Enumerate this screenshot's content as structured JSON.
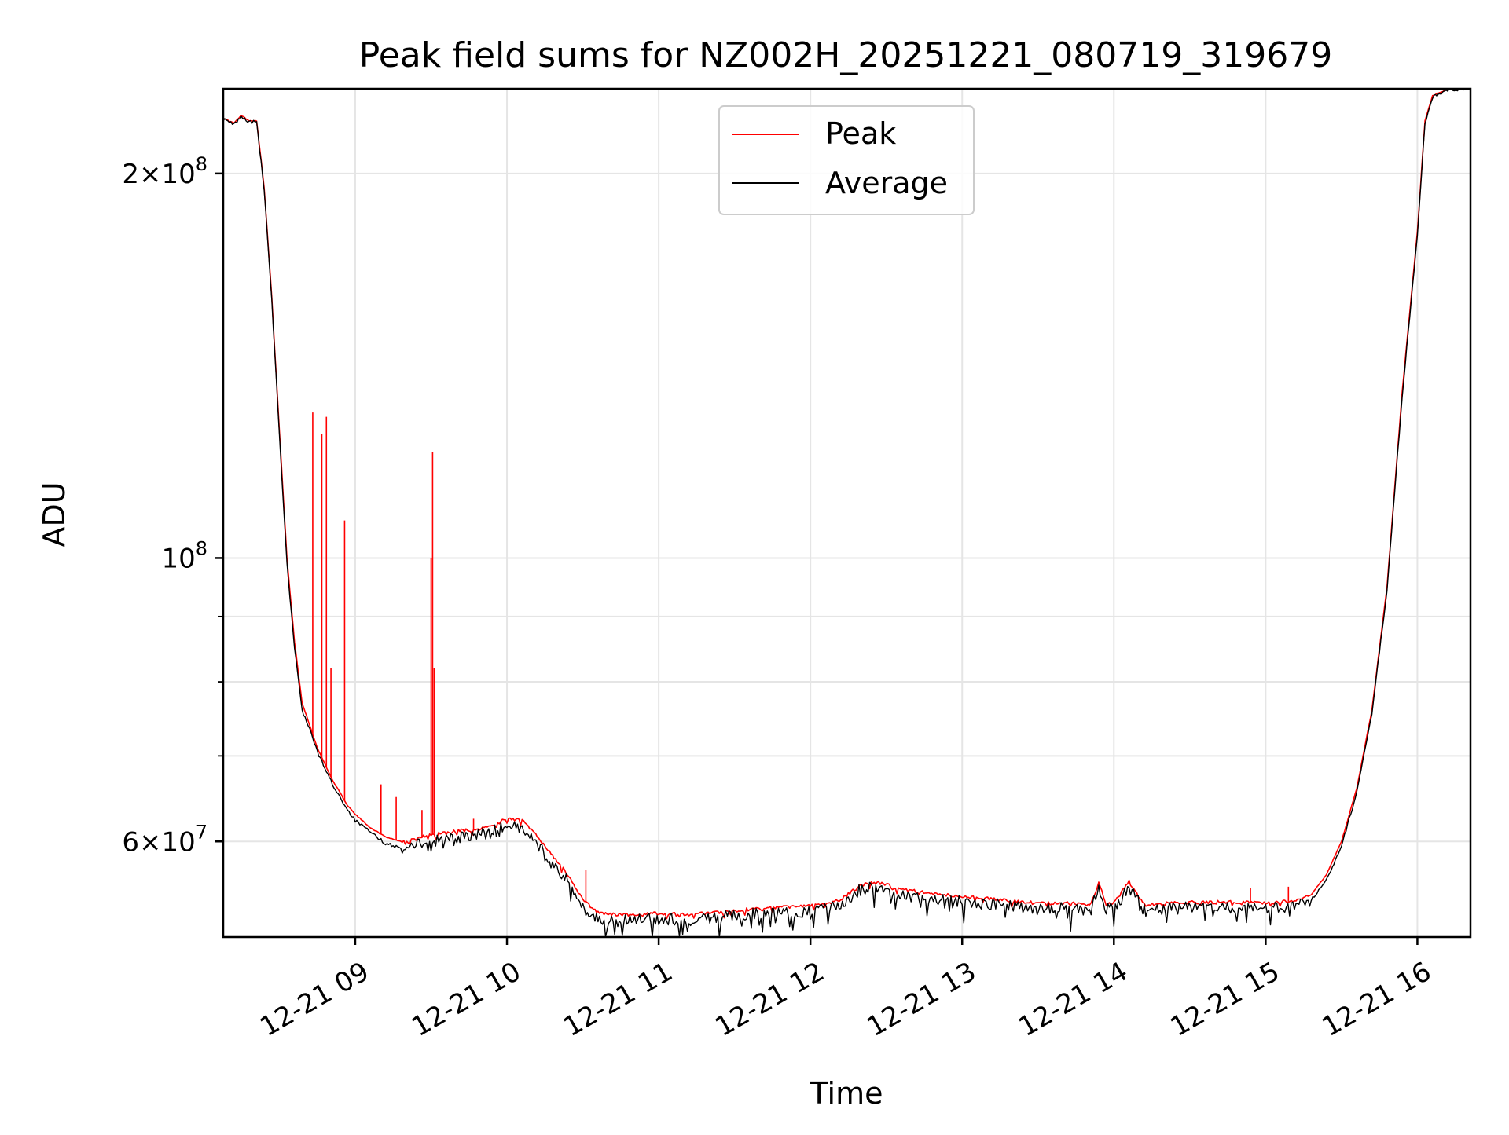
{
  "chart_data": {
    "type": "line",
    "title": "Peak field sums for NZ002H_20251221_080719_319679",
    "xlabel": "Time",
    "ylabel": "ADU",
    "x_unit": "hours since 12-21 00:00",
    "xlim": [
      8.13,
      16.35
    ],
    "ylim": [
      50500000,
      233000000
    ],
    "yscale": "log",
    "grid": true,
    "legend_position": "upper center",
    "xticks": [
      {
        "value": 9,
        "label": "12-21 09"
      },
      {
        "value": 10,
        "label": "12-21 10"
      },
      {
        "value": 11,
        "label": "12-21 11"
      },
      {
        "value": 12,
        "label": "12-21 12"
      },
      {
        "value": 13,
        "label": "12-21 13"
      },
      {
        "value": 14,
        "label": "12-21 14"
      },
      {
        "value": 15,
        "label": "12-21 15"
      },
      {
        "value": 16,
        "label": "12-21 16"
      }
    ],
    "yticks_major": [
      {
        "value": 200000000,
        "mantissa": "2",
        "times": "×",
        "base": "10",
        "exp": "8"
      },
      {
        "value": 100000000,
        "mantissa": "",
        "times": "",
        "base": "10",
        "exp": "8"
      },
      {
        "value": 60000000,
        "mantissa": "6",
        "times": "×",
        "base": "10",
        "exp": "7"
      }
    ],
    "yticks_minor": [
      70000000,
      80000000,
      90000000
    ],
    "series": [
      {
        "name": "Peak",
        "color": "#ff0000",
        "x": [
          8.13,
          8.2,
          8.25,
          8.3,
          8.35,
          8.4,
          8.45,
          8.5,
          8.55,
          8.6,
          8.65,
          8.7,
          8.75,
          8.8,
          8.85,
          8.9,
          8.95,
          9.0,
          9.1,
          9.2,
          9.3,
          9.35,
          9.4,
          9.5,
          9.6,
          9.7,
          9.8,
          9.9,
          10.0,
          10.1,
          10.2,
          10.3,
          10.4,
          10.5,
          10.6,
          10.7,
          10.8,
          11.0,
          11.2,
          11.4,
          11.6,
          11.8,
          12.0,
          12.2,
          12.3,
          12.4,
          12.5,
          12.6,
          12.8,
          13.0,
          13.2,
          13.4,
          13.6,
          13.85,
          13.9,
          13.95,
          14.0,
          14.1,
          14.2,
          14.4,
          14.6,
          14.8,
          15.0,
          15.2,
          15.3,
          15.4,
          15.5,
          15.6,
          15.7,
          15.8,
          15.9,
          16.0,
          16.05,
          16.1,
          16.2,
          16.35
        ],
        "y": [
          221000000,
          219000000,
          222000000,
          220000000,
          220000000,
          195000000,
          160000000,
          126000000,
          100000000,
          86000000,
          77000000,
          74000000,
          71000000,
          69000000,
          67000000,
          65500000,
          64000000,
          63000000,
          61500000,
          60500000,
          60000000,
          60200000,
          60300000,
          60800000,
          61000000,
          61200000,
          61300000,
          61700000,
          62500000,
          62300000,
          60500000,
          58500000,
          56500000,
          54000000,
          52800000,
          52600000,
          52600000,
          52700000,
          52600000,
          52800000,
          53100000,
          53300000,
          53400000,
          54000000,
          55200000,
          55800000,
          55500000,
          55000000,
          54700000,
          54300000,
          54100000,
          53800000,
          53700000,
          53600000,
          55800000,
          53600000,
          53700000,
          55800000,
          53500000,
          53700000,
          53800000,
          53800000,
          53700000,
          53900000,
          54500000,
          56500000,
          60000000,
          66000000,
          76000000,
          95000000,
          135000000,
          180000000,
          220000000,
          230000000,
          233000000,
          233000000
        ],
        "spikes": [
          {
            "x": 8.72,
            "y": 130000000
          },
          {
            "x": 8.78,
            "y": 125000000
          },
          {
            "x": 8.81,
            "y": 129000000
          },
          {
            "x": 8.84,
            "y": 82000000
          },
          {
            "x": 8.93,
            "y": 107000000
          },
          {
            "x": 9.5,
            "y": 100000000
          },
          {
            "x": 9.51,
            "y": 121000000
          },
          {
            "x": 9.52,
            "y": 82000000
          },
          {
            "x": 9.17,
            "y": 66500000
          },
          {
            "x": 9.27,
            "y": 65000000
          },
          {
            "x": 9.44,
            "y": 63500000
          },
          {
            "x": 9.78,
            "y": 62500000
          },
          {
            "x": 10.52,
            "y": 57000000
          },
          {
            "x": 14.9,
            "y": 55200000
          },
          {
            "x": 15.15,
            "y": 55300000
          }
        ]
      },
      {
        "name": "Average",
        "color": "#000000",
        "x": [
          8.13,
          8.2,
          8.25,
          8.3,
          8.35,
          8.4,
          8.45,
          8.5,
          8.55,
          8.6,
          8.65,
          8.7,
          8.75,
          8.8,
          8.85,
          8.9,
          8.95,
          9.0,
          9.1,
          9.2,
          9.3,
          9.35,
          9.4,
          9.5,
          9.6,
          9.7,
          9.8,
          9.9,
          10.0,
          10.1,
          10.2,
          10.3,
          10.4,
          10.5,
          10.6,
          10.7,
          10.8,
          11.0,
          11.2,
          11.4,
          11.6,
          11.8,
          12.0,
          12.2,
          12.3,
          12.4,
          12.5,
          12.6,
          12.8,
          13.0,
          13.2,
          13.4,
          13.6,
          13.85,
          13.9,
          13.95,
          14.0,
          14.1,
          14.2,
          14.4,
          14.6,
          14.8,
          15.0,
          15.2,
          15.3,
          15.4,
          15.5,
          15.6,
          15.7,
          15.8,
          15.9,
          16.0,
          16.05,
          16.1,
          16.2,
          16.35
        ],
        "y": [
          220500000,
          218500000,
          221500000,
          219500000,
          219500000,
          194000000,
          159000000,
          125000000,
          99000000,
          85000000,
          76000000,
          73500000,
          70500000,
          68500000,
          66500000,
          65000000,
          63500000,
          62300000,
          61000000,
          59800000,
          59300000,
          59500000,
          59600000,
          60000000,
          60300000,
          60500000,
          60700000,
          61000000,
          61800000,
          61600000,
          59800000,
          57800000,
          55800000,
          53300000,
          52200000,
          52000000,
          52000000,
          52200000,
          52100000,
          52300000,
          52600000,
          52800000,
          52900000,
          53500000,
          54800000,
          55300000,
          55000000,
          54500000,
          54200000,
          53800000,
          53600000,
          53300000,
          53200000,
          53100000,
          55300000,
          53100000,
          53200000,
          55300000,
          53000000,
          53200000,
          53300000,
          53300000,
          53200000,
          53400000,
          54000000,
          56000000,
          59500000,
          65500000,
          75500000,
          94500000,
          134000000,
          179000000,
          219000000,
          229500000,
          232500000,
          233000000
        ]
      }
    ]
  }
}
